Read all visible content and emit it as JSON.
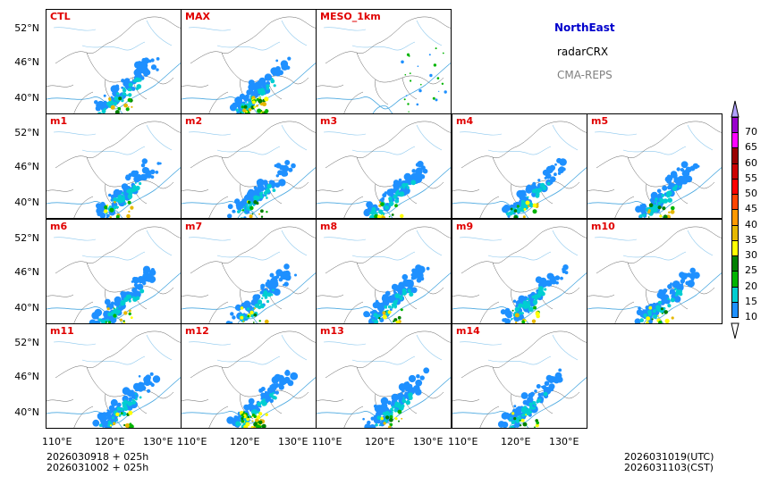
{
  "info": {
    "region": "NorthEast",
    "variable": "radarCRX",
    "source": "CMA-REPS"
  },
  "panels": [
    {
      "label": "CTL"
    },
    {
      "label": "MAX"
    },
    {
      "label": "MESO_1km"
    },
    {
      "label": "m1"
    },
    {
      "label": "m2"
    },
    {
      "label": "m3"
    },
    {
      "label": "m4"
    },
    {
      "label": "m5"
    },
    {
      "label": "m6"
    },
    {
      "label": "m7"
    },
    {
      "label": "m8"
    },
    {
      "label": "m9"
    },
    {
      "label": "m10"
    },
    {
      "label": "m11"
    },
    {
      "label": "m12"
    },
    {
      "label": "m13"
    },
    {
      "label": "m14"
    }
  ],
  "axes": {
    "lat_ticks": [
      "52°N",
      "46°N",
      "40°N"
    ],
    "lon_ticks": [
      "110°E",
      "120°E",
      "130°E"
    ]
  },
  "colorbar": {
    "levels": [
      "10",
      "15",
      "20",
      "25",
      "30",
      "35",
      "40",
      "45",
      "50",
      "55",
      "60",
      "65",
      "70"
    ],
    "colors": [
      "#1e90ff",
      "#00ced1",
      "#00b400",
      "#008000",
      "#ffff00",
      "#e6b800",
      "#ff9900",
      "#ff4500",
      "#ff0000",
      "#cc0000",
      "#990000",
      "#ff00ff",
      "#9900cc",
      "#b0a0ff"
    ]
  },
  "footer": {
    "init_utc": "2026030918  +  025h",
    "init_cst": "2026031002  +  025h",
    "valid_utc": "2026031019(UTC)",
    "valid_cst": "2026031103(CST)"
  }
}
